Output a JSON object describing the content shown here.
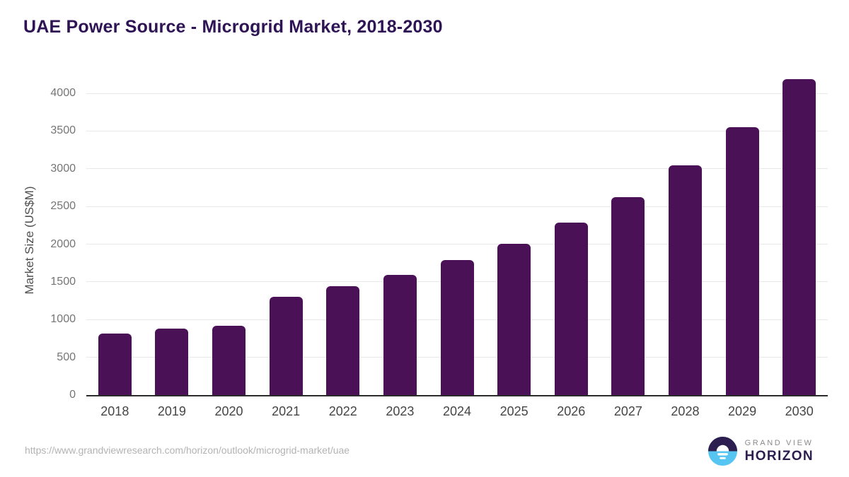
{
  "title": "UAE Power Source - Microgrid Market, 2018-2030",
  "chart_data": {
    "type": "bar",
    "categories": [
      "2018",
      "2019",
      "2020",
      "2021",
      "2022",
      "2023",
      "2024",
      "2025",
      "2026",
      "2027",
      "2028",
      "2029",
      "2030"
    ],
    "values": [
      815,
      885,
      920,
      1300,
      1440,
      1590,
      1785,
      2005,
      2285,
      2625,
      3040,
      3555,
      4190
    ],
    "title": "UAE Power Source - Microgrid Market, 2018-2030",
    "xlabel": "",
    "ylabel": "Market Size (US$M)",
    "ylim": [
      0,
      4000
    ],
    "yticks": [
      0,
      500,
      1000,
      1500,
      2000,
      2500,
      3000,
      3500,
      4000
    ],
    "grid": true,
    "legend": "none",
    "bar_color": "#4a1157"
  },
  "colors": {
    "bar": "#4a1157",
    "title_text": "#2e1355",
    "axis_line": "#2b2b2b",
    "gridline": "#e8e8e8",
    "ytick_text": "#757575",
    "xtick_text": "#454545",
    "source_text": "#b3b3b3",
    "logo_navy": "#2c1e4f",
    "logo_blue": "#56c5f2",
    "logo_gray": "#8a8a8a"
  },
  "footer": {
    "source_url": "https://www.grandviewresearch.com/horizon/outlook/microgrid-market/uae",
    "logo_line1": "GRAND VIEW",
    "logo_line2": "HORIZON"
  }
}
